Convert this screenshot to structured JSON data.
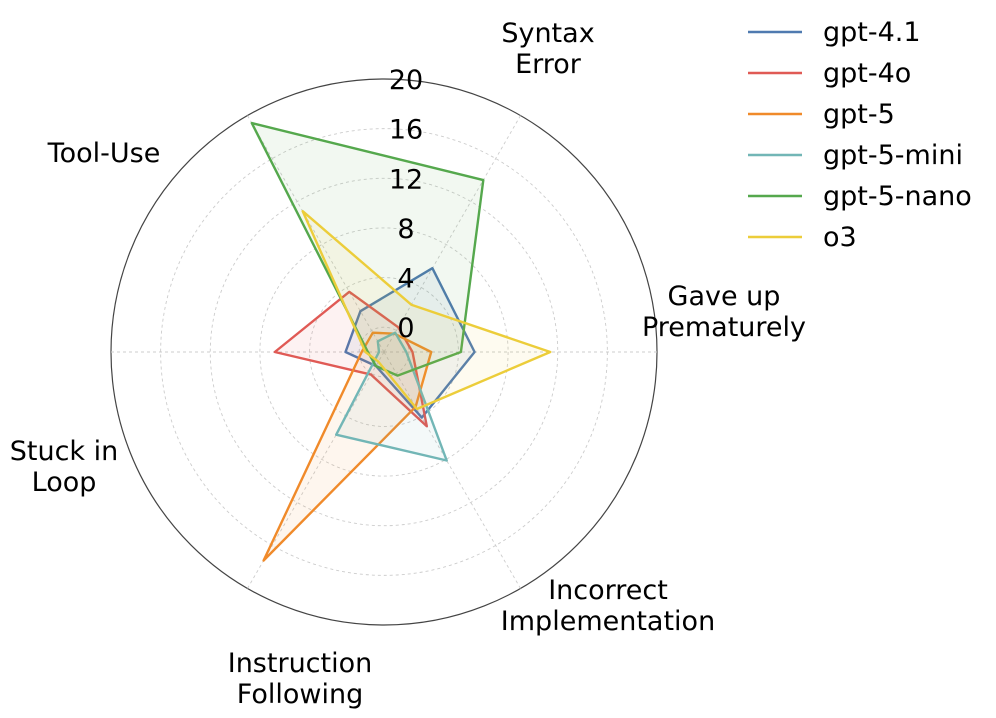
{
  "chart_data": {
    "type": "radar",
    "axes": [
      [
        "Syntax",
        "Error"
      ],
      [
        "Gave up",
        "Prematurely"
      ],
      [
        "Incorrect",
        "Implementation"
      ],
      [
        "Instruction",
        "Following"
      ],
      [
        "Stuck in",
        "Loop"
      ],
      [
        "Tool-Use"
      ]
    ],
    "rlim": [
      -2,
      20
    ],
    "rticks": [
      0,
      4,
      8,
      12,
      16,
      20
    ],
    "rtick_labels": [
      "0",
      "4",
      "8",
      "12",
      "16",
      "20"
    ],
    "grid": true,
    "legend_position": "top-right",
    "series": [
      {
        "name": "gpt-4.1",
        "color": "#4f7ab0",
        "values": [
          5.8,
          5.3,
          4.1,
          -0.7,
          1.1,
          1.8
        ]
      },
      {
        "name": "gpt-4o",
        "color": "#e05a55",
        "values": [
          0.3,
          0.3,
          4.9,
          0.1,
          6.8,
          3.6
        ]
      },
      {
        "name": "gpt-5",
        "color": "#f08a2a",
        "values": [
          -0.3,
          1.8,
          3.1,
          17.4,
          -0.2,
          -0.2
        ]
      },
      {
        "name": "gpt-5-mini",
        "color": "#72b6b6",
        "values": [
          -0.2,
          -0.2,
          8.1,
          5.7,
          -1.6,
          -1.0
        ]
      },
      {
        "name": "gpt-5-nano",
        "color": "#55a84d",
        "values": [
          14.0,
          4.2,
          0.2,
          -0.7,
          -0.7,
          19.3
        ]
      },
      {
        "name": "o3",
        "color": "#eccd3a",
        "values": [
          2.4,
          11.4,
          3.3,
          -1.1,
          -0.5,
          11.1
        ]
      }
    ]
  }
}
